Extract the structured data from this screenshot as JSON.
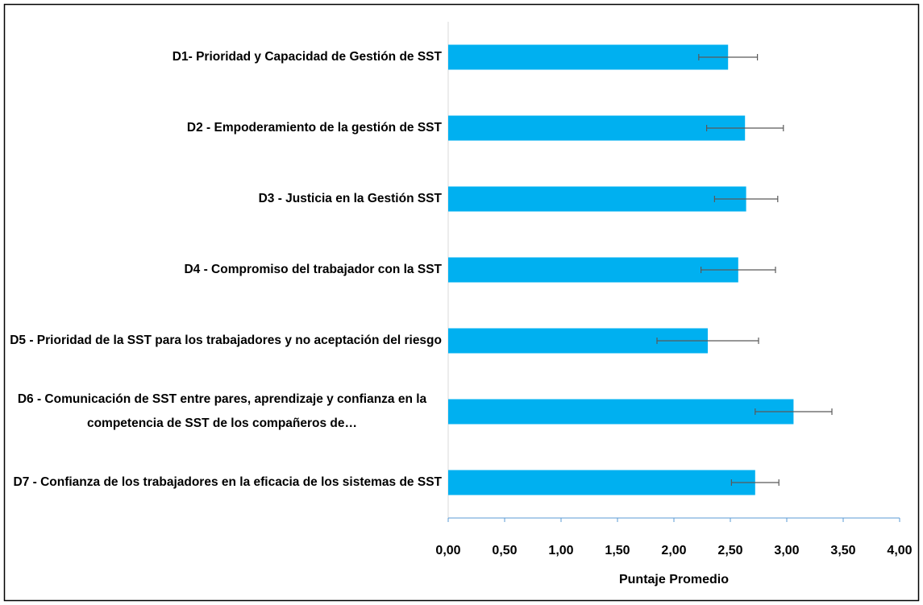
{
  "chart_data": {
    "type": "bar",
    "orientation": "horizontal",
    "categories": [
      "D1- Prioridad y Capacidad de Gestión de SST",
      "D2 - Empoderamiento de la gestión de SST",
      "D3 - Justicia en la Gestión SST",
      "D4 - Compromiso del trabajador con la SST",
      "D5 - Prioridad de la SST para los trabajadores y no aceptación del riesgo",
      "D6 - Comunicación de SST entre pares, aprendizaje y confianza en la competencia de SST de los compañeros de…",
      "D7 - Confianza de los trabajadores en la eficacia de los sistemas de SST"
    ],
    "values": [
      2.48,
      2.63,
      2.64,
      2.57,
      2.3,
      3.06,
      2.72
    ],
    "errors": [
      0.26,
      0.34,
      0.28,
      0.33,
      0.45,
      0.34,
      0.21
    ],
    "color": "#00b0f0",
    "error_color": "#595959",
    "xlabel": "Puntaje Promedio",
    "xlim": [
      0,
      4
    ],
    "xticks": [
      {
        "value": 0,
        "label": "0,00"
      },
      {
        "value": 0.5,
        "label": "0,50"
      },
      {
        "value": 1,
        "label": "1,00"
      },
      {
        "value": 1.5,
        "label": "1,50"
      },
      {
        "value": 2,
        "label": "2,00"
      },
      {
        "value": 2.5,
        "label": "2,50"
      },
      {
        "value": 3,
        "label": "3,00"
      },
      {
        "value": 3.5,
        "label": "3,50"
      },
      {
        "value": 4,
        "label": "4,00"
      }
    ],
    "grid": false
  }
}
